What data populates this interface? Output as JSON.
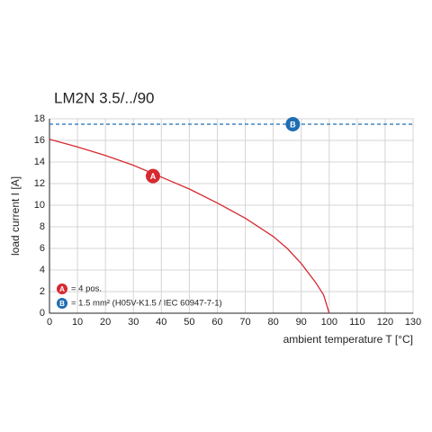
{
  "chart_data": {
    "type": "line",
    "title": "LM2N 3.5/../90",
    "x_label": "ambient temperature T [°C]",
    "y_label": "load current I [A]",
    "xlim": [
      0,
      130
    ],
    "xticks": [
      0,
      10,
      20,
      30,
      40,
      50,
      60,
      70,
      80,
      90,
      100,
      110,
      120,
      130
    ],
    "ylim": [
      0,
      18
    ],
    "yticks": [
      0,
      2,
      4,
      6,
      8,
      10,
      12,
      14,
      16,
      18
    ],
    "grid": true,
    "series": [
      {
        "name": "A",
        "color": "#d62a30",
        "legend": "= 4 pos.",
        "dashed": false,
        "x": [
          0,
          10,
          20,
          30,
          40,
          50,
          60,
          70,
          80,
          85,
          90,
          95,
          98,
          100
        ],
        "values": [
          16.1,
          15.4,
          14.6,
          13.7,
          12.6,
          11.5,
          10.2,
          8.8,
          7.1,
          6.0,
          4.6,
          2.9,
          1.7,
          0
        ],
        "marker": {
          "x": 37,
          "y": 12.7
        }
      },
      {
        "name": "B",
        "color": "#1f6db3",
        "legend": "= 1.5 mm² (H05V-K1.5 / IEC 60947-7-1)",
        "dashed": true,
        "x": [
          0,
          130
        ],
        "values": [
          17.5,
          17.5
        ],
        "marker": {
          "x": 87,
          "y": 17.5
        }
      }
    ]
  }
}
